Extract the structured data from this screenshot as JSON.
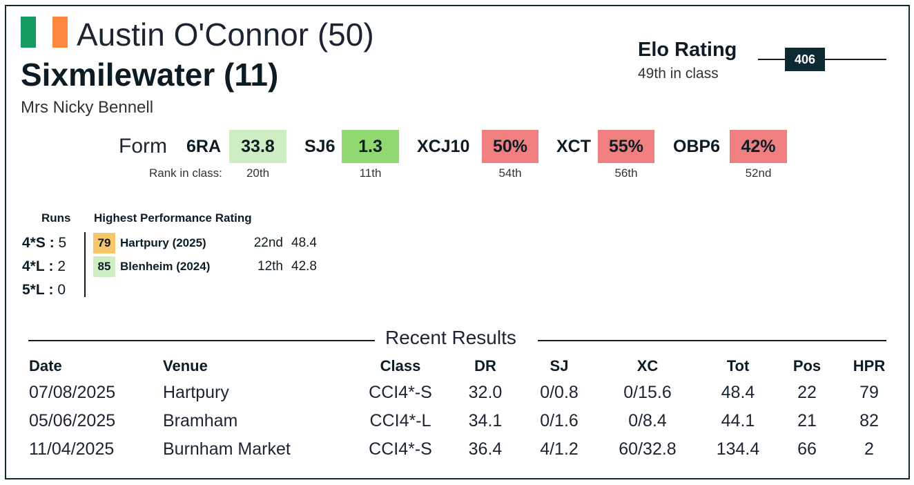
{
  "header": {
    "rider": "Austin O'Connor (50)",
    "horse": "Sixmilewater (11)",
    "owner": "Mrs Nicky Bennell",
    "flag_colors": [
      "#169b62",
      "#ffffff",
      "#ff883e"
    ]
  },
  "elo": {
    "title": "Elo Rating",
    "subtitle": "49th in class",
    "value": "406"
  },
  "form": {
    "label": "Form",
    "rank_label": "Rank in class:",
    "metrics": [
      {
        "name": "6RA",
        "value": "33.8",
        "rank": "20th",
        "color": "#cdeec2"
      },
      {
        "name": "SJ6",
        "value": "1.3",
        "rank": "11th",
        "color": "#8fd970"
      },
      {
        "name": "XCJ10",
        "value": "50%",
        "rank": "54th",
        "color": "#f08080"
      },
      {
        "name": "XCT",
        "value": "55%",
        "rank": "56th",
        "color": "#f08080"
      },
      {
        "name": "OBP6",
        "value": "42%",
        "rank": "52nd",
        "color": "#f08080"
      }
    ]
  },
  "runs": {
    "header": "Runs",
    "rows": [
      {
        "level": "4*S",
        "sep": ":",
        "count": "5"
      },
      {
        "level": "4*L",
        "sep": ":",
        "count": "2"
      },
      {
        "level": "5*L",
        "sep": ":",
        "count": "0"
      }
    ]
  },
  "hpr": {
    "header": "Highest Performance Rating",
    "rows": [
      {
        "rating": "79",
        "event": "Hartpury (2025)",
        "position": "22nd",
        "score": "48.4",
        "color": "#f7c66b"
      },
      {
        "rating": "85",
        "event": "Blenheim (2024)",
        "position": "12th",
        "score": "42.8",
        "color": "#cdeec2"
      }
    ]
  },
  "results": {
    "title": "Recent Results",
    "columns": [
      "Date",
      "Venue",
      "Class",
      "DR",
      "SJ",
      "XC",
      "Tot",
      "Pos",
      "HPR"
    ],
    "rows": [
      [
        "07/08/2025",
        "Hartpury",
        "CCI4*-S",
        "32.0",
        "0/0.8",
        "0/15.6",
        "48.4",
        "22",
        "79"
      ],
      [
        "05/06/2025",
        "Bramham",
        "CCI4*-L",
        "34.1",
        "0/1.6",
        "0/8.4",
        "44.1",
        "21",
        "82"
      ],
      [
        "11/04/2025",
        "Burnham Market",
        "CCI4*-S",
        "36.4",
        "4/1.2",
        "60/32.8",
        "134.4",
        "66",
        "2"
      ]
    ]
  }
}
